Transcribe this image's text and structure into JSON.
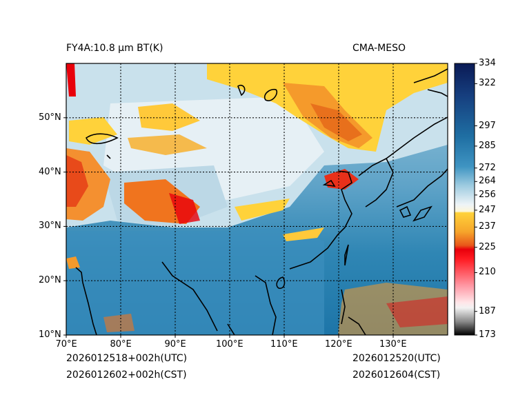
{
  "header": {
    "title_left": "FY4A:10.8 µm BT(K)",
    "title_right": "CMA-MESO"
  },
  "footer": {
    "init_utc": "2026012518+002h(UTC)",
    "init_cst": "2026012602+002h(CST)",
    "valid_utc": "2026012520(UTC)",
    "valid_cst": "2026012604(CST)"
  },
  "map": {
    "lon_range": [
      70,
      140
    ],
    "lat_range": [
      10,
      60
    ],
    "lon_ticks": [
      "70°E",
      "80°E",
      "90°E",
      "100°E",
      "110°E",
      "120°E",
      "130°E"
    ],
    "lat_ticks": [
      "10°N",
      "20°N",
      "30°N",
      "40°N",
      "50°N"
    ],
    "lon_values": [
      70,
      80,
      90,
      100,
      110,
      120,
      130
    ],
    "lat_values": [
      10,
      20,
      30,
      40,
      50
    ]
  },
  "colorbar": {
    "min": 173,
    "max": 334,
    "tick_labels": [
      "334",
      "322",
      "297",
      "285",
      "272",
      "264",
      "256",
      "247",
      "237",
      "225",
      "210",
      "187",
      "173"
    ],
    "tick_values": [
      334,
      322,
      297,
      285,
      272,
      264,
      256,
      247,
      237,
      225,
      210,
      187,
      173
    ],
    "colors": {
      "very_cold": "#000000",
      "gray": "#8a8a8a",
      "pink": "#ffc8cf",
      "red": "#e8000b",
      "orange": "#f07a1c",
      "yellow": "#ffd23a",
      "white": "#f2f6f8",
      "light_blue": "#a9cfe0",
      "blue": "#2d87b6",
      "dark_blue": "#0d5f93",
      "navy": "#0a1a55"
    }
  }
}
